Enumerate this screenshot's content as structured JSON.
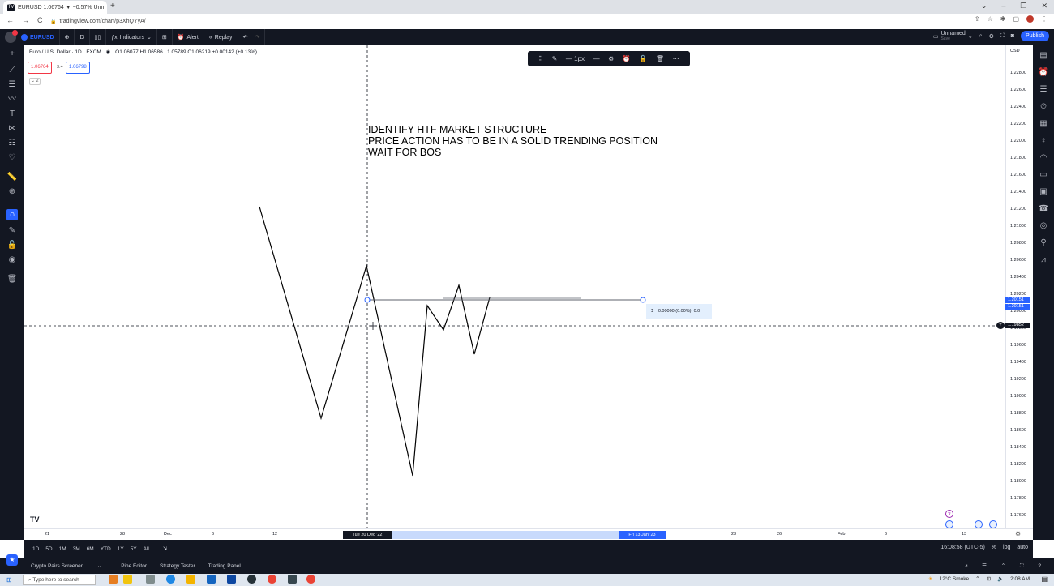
{
  "browser": {
    "tab_title": "EURUSD 1.06764 ▼ −0.57% Unn",
    "tab_close": "×",
    "new_tab": "+",
    "url": "tradingview.com/chart/p3XhQYyA/",
    "nav_back": "←",
    "nav_forward": "→",
    "nav_reload": "C",
    "lock": "🔒"
  },
  "toolbar": {
    "symbol": "EURUSD",
    "add_symbol": "⊕",
    "interval": "D",
    "chart_type": "▯▯",
    "indicators": "Indicators",
    "templates": "⊞",
    "alert": "Alert",
    "replay": "Replay",
    "undo": "↶",
    "redo": "↷",
    "layout_name": "Unnamed",
    "layout_sub": "Save",
    "publish": "Publish"
  },
  "legend": {
    "title": "Euro / U.S. Dollar · 1D · FXCM",
    "ohlc": "O1.06077 H1.06586 L1.05789 C1.06219 +0.00142 (+0.13%)",
    "sell_price": "1.06764",
    "spread": "3.4",
    "buy_price": "1.06798",
    "collapse": "⌄ 2"
  },
  "annotation": [
    "IDENTIFY HTF MARKET STRUCTURE",
    "PRICE ACTION HAS TO BE IN A SOLID TRENDING POSITION",
    "WAIT FOR BOS"
  ],
  "measure_label": "0.00000 (0.00%), 0.0",
  "price_axis": {
    "currency": "USD",
    "ticks": [
      "1.22800",
      "1.22600",
      "1.22400",
      "1.22200",
      "1.22000",
      "1.21800",
      "1.21600",
      "1.21400",
      "1.21200",
      "1.21000",
      "1.20800",
      "1.20600",
      "1.20400",
      "1.20200",
      "1.20000",
      "1.19800",
      "1.19600",
      "1.19400",
      "1.19200",
      "1.19000",
      "1.18800",
      "1.18600",
      "1.18400",
      "1.18200",
      "1.18000",
      "1.17800",
      "1.17600"
    ],
    "badge_high": "1.20151",
    "badge_low": "1.20151",
    "crosshair_price": "1.19852"
  },
  "time_axis": {
    "ticks": [
      "21",
      "28",
      "Dec",
      "6",
      "12",
      "26",
      "2023",
      "9",
      "23",
      "26",
      "Feb",
      "6",
      "13"
    ],
    "crosshair_date": "Tue 20 Dec '22",
    "range_date": "Fri 13 Jan '23"
  },
  "ranges": [
    "1D",
    "5D",
    "1M",
    "3M",
    "6M",
    "YTD",
    "1Y",
    "5Y",
    "All"
  ],
  "clock": "16:08:58 (UTC-5)",
  "scale_opts": [
    "%",
    "log",
    "auto"
  ],
  "bottom_tabs": [
    "Crypto Pairs Screener",
    "Pine Editor",
    "Strategy Tester",
    "Trading Panel"
  ],
  "taskbar": {
    "search": "Type here to search",
    "weather": "12°C Smoke",
    "time": "2:08 AM"
  },
  "colors": {
    "tv_dark": "#131722",
    "accent_blue": "#2962ff",
    "sell_red": "#f23645"
  }
}
